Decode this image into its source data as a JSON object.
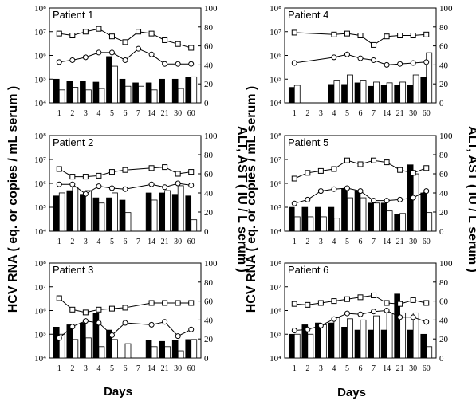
{
  "figure": {
    "left_axis_label": "HCV RNA ( eq. or copies / mL serum )",
    "right_axis_label": "ALT, AST ( IU / L serum )",
    "x_axis_label": "Days"
  },
  "chart_data": [
    {
      "type": "bar",
      "title": "Patient 1",
      "categories": [
        "1",
        "2",
        "3",
        "4",
        "5",
        "6",
        "7",
        "14",
        "21",
        "30",
        "60"
      ],
      "ylim_left": [
        10000,
        100000000
      ],
      "yscale_left": "log",
      "ylim_right": [
        0,
        100
      ],
      "series": [
        {
          "axis": "left",
          "style": "black-bar",
          "values": [
            100000,
            85000,
            85000,
            75000,
            900000,
            100000,
            70000,
            70000,
            100000,
            100000,
            125000
          ]
        },
        {
          "axis": "left",
          "style": "white-bar",
          "values": [
            35000,
            45000,
            35000,
            40000,
            350000,
            50000,
            50000,
            35000,
            null,
            40000,
            125000
          ]
        },
        {
          "axis": "right",
          "style": "square-line",
          "values": [
            73,
            71,
            75,
            78,
            70,
            64,
            75,
            73,
            66,
            62,
            58
          ]
        },
        {
          "axis": "right",
          "style": "circle-line",
          "values": [
            43,
            45,
            48,
            53,
            53,
            45,
            57,
            51,
            41,
            41,
            41
          ]
        }
      ]
    },
    {
      "type": "bar",
      "title": "Patient 4",
      "categories": [
        "1",
        "2",
        "3",
        "4",
        "5",
        "6",
        "7",
        "14",
        "21",
        "30",
        "60"
      ],
      "ylim_left": [
        10000,
        100000000
      ],
      "yscale_left": "log",
      "ylim_right": [
        0,
        100
      ],
      "series": [
        {
          "axis": "left",
          "style": "black-bar",
          "values": [
            45000,
            null,
            null,
            60000,
            60000,
            70000,
            50000,
            55000,
            55000,
            55000,
            120000
          ]
        },
        {
          "axis": "left",
          "style": "white-bar",
          "values": [
            55000,
            null,
            null,
            90000,
            150000,
            90000,
            75000,
            70000,
            75000,
            150000,
            1300000
          ]
        },
        {
          "axis": "right",
          "style": "square-line",
          "values": [
            74,
            null,
            null,
            72,
            73,
            71,
            61,
            70,
            71,
            71,
            72
          ]
        },
        {
          "axis": "right",
          "style": "circle-line",
          "values": [
            42,
            null,
            null,
            48,
            51,
            47,
            45,
            40,
            41,
            42,
            43
          ]
        }
      ]
    },
    {
      "type": "bar",
      "title": "Patient 2",
      "categories": [
        "1",
        "2",
        "3",
        "4",
        "5",
        "6",
        "7",
        "14",
        "21",
        "30",
        "60"
      ],
      "ylim_left": [
        10000,
        100000000
      ],
      "yscale_left": "log",
      "ylim_right": [
        0,
        100
      ],
      "series": [
        {
          "axis": "left",
          "style": "black-bar",
          "values": [
            300000,
            500000,
            350000,
            250000,
            250000,
            200000,
            null,
            400000,
            400000,
            350000,
            300000
          ]
        },
        {
          "axis": "left",
          "style": "white-bar",
          "values": [
            400000,
            700000,
            500000,
            150000,
            400000,
            60000,
            null,
            200000,
            500000,
            800000,
            30000
          ]
        },
        {
          "axis": "right",
          "style": "square-line",
          "values": [
            65,
            57,
            57,
            58,
            62,
            64,
            null,
            66,
            67,
            60,
            62
          ]
        },
        {
          "axis": "right",
          "style": "circle-line",
          "values": [
            49,
            49,
            39,
            47,
            45,
            44,
            null,
            49,
            46,
            50,
            48
          ]
        }
      ]
    },
    {
      "type": "bar",
      "title": "Patient 5",
      "categories": [
        "1",
        "2",
        "3",
        "4",
        "5",
        "6",
        "7",
        "14",
        "21",
        "30",
        "60"
      ],
      "ylim_left": [
        10000,
        100000000
      ],
      "yscale_left": "log",
      "ylim_right": [
        0,
        100
      ],
      "series": [
        {
          "axis": "left",
          "style": "black-bar",
          "values": [
            100000,
            100000,
            100000,
            100000,
            600000,
            500000,
            150000,
            150000,
            50000,
            6000000,
            400000
          ]
        },
        {
          "axis": "left",
          "style": "white-bar",
          "values": [
            40000,
            40000,
            40000,
            35000,
            250000,
            250000,
            150000,
            70000,
            55000,
            2500000,
            60000
          ]
        },
        {
          "axis": "right",
          "style": "square-line",
          "values": [
            55,
            61,
            63,
            65,
            74,
            70,
            74,
            72,
            64,
            61,
            66
          ]
        },
        {
          "axis": "right",
          "style": "circle-line",
          "values": [
            29,
            33,
            42,
            44,
            45,
            42,
            32,
            32,
            33,
            35,
            42
          ]
        }
      ]
    },
    {
      "type": "bar",
      "title": "Patient 3",
      "categories": [
        "1",
        "2",
        "3",
        "4",
        "5",
        "6",
        "7",
        "14",
        "21",
        "30",
        "60"
      ],
      "ylim_left": [
        10000,
        100000000
      ],
      "yscale_left": "log",
      "ylim_right": [
        0,
        100
      ],
      "series": [
        {
          "axis": "left",
          "style": "black-bar",
          "values": [
            200000,
            250000,
            300000,
            800000,
            150000,
            null,
            null,
            55000,
            50000,
            55000,
            60000
          ]
        },
        {
          "axis": "left",
          "style": "white-bar",
          "values": [
            100000,
            60000,
            70000,
            30000,
            60000,
            40000,
            null,
            30000,
            30000,
            20000,
            60000
          ]
        },
        {
          "axis": "right",
          "style": "square-line",
          "values": [
            63,
            51,
            48,
            51,
            52,
            53,
            null,
            58,
            58,
            58,
            58
          ]
        },
        {
          "axis": "right",
          "style": "circle-line",
          "values": [
            21,
            33,
            39,
            37,
            24,
            37,
            null,
            35,
            38,
            23,
            30
          ]
        }
      ]
    },
    {
      "type": "bar",
      "title": "Patient 6",
      "categories": [
        "1",
        "2",
        "3",
        "4",
        "5",
        "6",
        "7",
        "14",
        "21",
        "30",
        "60"
      ],
      "ylim_left": [
        10000,
        100000000
      ],
      "yscale_left": "log",
      "ylim_right": [
        0,
        100
      ],
      "series": [
        {
          "axis": "left",
          "style": "black-bar",
          "values": [
            100000,
            250000,
            300000,
            300000,
            200000,
            150000,
            150000,
            150000,
            5000000,
            150000,
            100000
          ]
        },
        {
          "axis": "left",
          "style": "white-bar",
          "values": [
            100000,
            100000,
            250000,
            500000,
            450000,
            400000,
            600000,
            800000,
            800000,
            800000,
            30000
          ]
        },
        {
          "axis": "right",
          "style": "square-line",
          "values": [
            57,
            56,
            58,
            60,
            62,
            64,
            66,
            58,
            57,
            61,
            58
          ]
        },
        {
          "axis": "right",
          "style": "circle-line",
          "values": [
            29,
            30,
            34,
            41,
            47,
            46,
            49,
            50,
            43,
            43,
            38
          ]
        }
      ]
    }
  ]
}
